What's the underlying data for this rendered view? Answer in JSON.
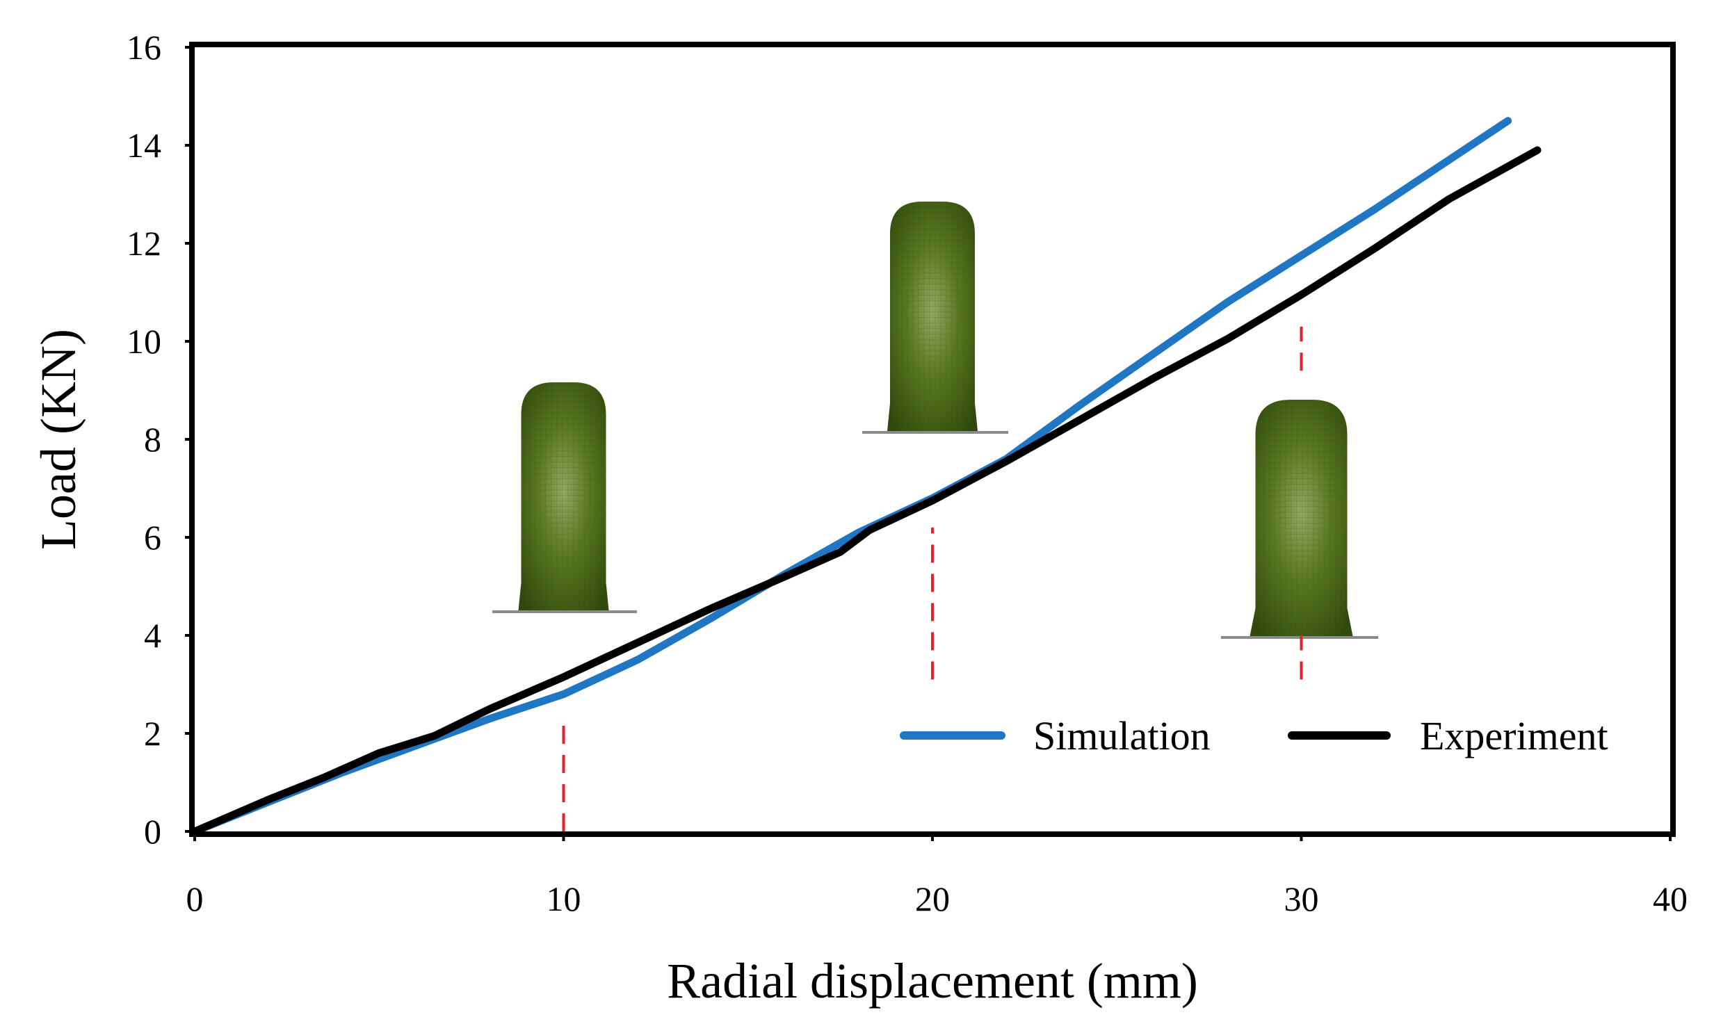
{
  "chart_data": {
    "type": "line",
    "title": "",
    "xlabel": "Radial displacement (mm)",
    "ylabel": "Load (KN)",
    "xlim": [
      0,
      40
    ],
    "ylim": [
      0,
      16
    ],
    "xticks": [
      0,
      10,
      20,
      30,
      40
    ],
    "yticks": [
      0,
      2,
      4,
      6,
      8,
      10,
      12,
      14,
      16
    ],
    "grid": false,
    "legend_position": "bottom-right",
    "series": [
      {
        "name": "Simulation",
        "color": "#1f77c4",
        "x": [
          0,
          2,
          4,
          6,
          8,
          10,
          12,
          14,
          16,
          18,
          20,
          22,
          24,
          26,
          28,
          30,
          32,
          34,
          35.6
        ],
        "y": [
          0,
          0.6,
          1.2,
          1.75,
          2.3,
          2.8,
          3.5,
          4.35,
          5.25,
          6.1,
          6.8,
          7.6,
          8.7,
          9.75,
          10.8,
          11.75,
          12.7,
          13.7,
          14.5
        ]
      },
      {
        "name": "Experiment",
        "color": "#000000",
        "x": [
          0,
          2,
          3.5,
          5,
          6.5,
          8,
          10,
          12,
          14,
          16,
          17.5,
          18.3,
          20,
          22,
          24,
          26,
          28,
          30,
          32,
          34,
          36.4
        ],
        "y": [
          0,
          0.65,
          1.1,
          1.6,
          1.95,
          2.5,
          3.15,
          3.85,
          4.55,
          5.2,
          5.7,
          6.15,
          6.75,
          7.55,
          8.4,
          9.25,
          10.05,
          10.95,
          11.9,
          12.9,
          13.9
        ]
      }
    ],
    "annotations": [
      {
        "type": "vline",
        "x": 10,
        "y_from": 0,
        "y_to": 2.3,
        "color": "#e8202a",
        "style": "dashed"
      },
      {
        "type": "vline",
        "x": 20,
        "y_from": 3.1,
        "y_to": 6.2,
        "color": "#e8202a",
        "style": "dashed"
      },
      {
        "type": "vline",
        "x": 30,
        "y_from": 3.1,
        "y_to": 4.0,
        "color": "#e8202a",
        "style": "dashed"
      },
      {
        "type": "vline",
        "x": 30,
        "y_from": 9.4,
        "y_to": 10.3,
        "color": "#e8202a",
        "style": "dashed"
      },
      {
        "type": "inset-image",
        "description": "deformed cylinder shape",
        "x_center": 10
      },
      {
        "type": "inset-image",
        "description": "deformed cylinder shape",
        "x_center": 20
      },
      {
        "type": "inset-image",
        "description": "deformed cylinder shape",
        "x_center": 30
      }
    ]
  },
  "colors": {
    "axis": "#000000",
    "cylinder_fill": "#4a6b1c",
    "cylinder_highlight": "#8aa45a",
    "baseline": "#8a8a8a"
  }
}
